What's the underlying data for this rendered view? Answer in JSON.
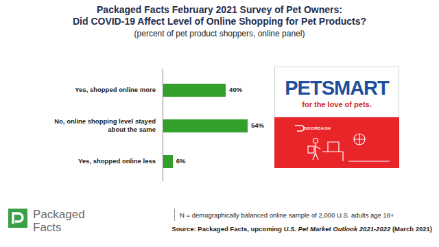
{
  "chart_data": {
    "type": "bar",
    "title": "Packaged Facts February 2021 Survey of Pet Owners:\nDid COVID-19 Affect Level of Online Shopping for Pet Products?",
    "subtitle": "(percent of pet product shoppers, online panel)",
    "categories": [
      "Yes, shopped online more",
      "No, online shopping level stayed about the same",
      "Yes, shopped online less"
    ],
    "values": [
      40,
      54,
      6
    ],
    "value_labels": [
      "40%",
      "54%",
      "6%"
    ],
    "color": "#33a02c",
    "orientation": "horizontal",
    "data_labels": true,
    "tick_labels": "y",
    "annotations": [
      "PETSMART",
      "for the love of pets.",
      "DOORDASH",
      "Packaged Facts",
      "N = demographically balanced online sample of 2,000 U.S. adults age 18+",
      "Source: Packaged Facts, upcoming ",
      "U.S. Pet Market Outlook 2021-2022",
      " (March 2021)"
    ]
  }
}
